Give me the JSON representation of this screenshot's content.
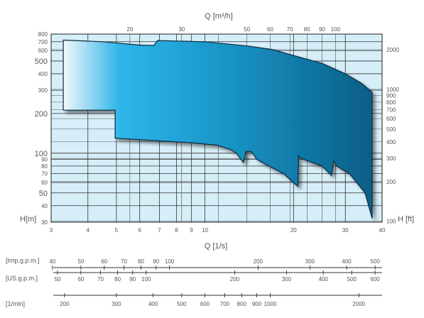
{
  "chart_data": {
    "type": "area",
    "title": "",
    "axes": {
      "q_top_label": "Q [m³/h]",
      "q_bottom_label": "Q [1/s]",
      "h_left_label": "H[m]",
      "h_right_label": "H [ft]",
      "x_ticks_m3h": [
        "20",
        "30",
        "50",
        "60",
        "70",
        "80",
        "90",
        "100"
      ],
      "x_ticks_ls": [
        "3",
        "4",
        "5",
        "6",
        "7",
        "8",
        "9",
        "10",
        "20",
        "30",
        "40"
      ],
      "y_ticks_m": [
        "800",
        "700",
        "600",
        "500",
        "400",
        "300",
        "200",
        "100",
        "90",
        "80",
        "70",
        "60",
        "50",
        "40",
        "30"
      ],
      "y_ticks_ft": [
        "2000",
        "1000",
        "900",
        "800",
        "700",
        "600",
        "500",
        "400",
        "300",
        "200",
        "100"
      ],
      "xlim_ls": [
        3,
        40
      ],
      "ylim_m": [
        30,
        800
      ],
      "log_x": true,
      "log_y": true,
      "grid": true
    },
    "envelope": {
      "name": "",
      "upper": [
        [
          3.3,
          720
        ],
        [
          4.5,
          700
        ],
        [
          6.0,
          660
        ],
        [
          6.7,
          655
        ],
        [
          6.9,
          715
        ],
        [
          10,
          700
        ],
        [
          14,
          650
        ],
        [
          17,
          610
        ],
        [
          20,
          550
        ],
        [
          25,
          480
        ],
        [
          30,
          400
        ],
        [
          34,
          340
        ],
        [
          37,
          290
        ]
      ],
      "lower": [
        [
          37,
          32
        ],
        [
          35,
          50
        ],
        [
          31,
          70
        ],
        [
          28,
          80
        ],
        [
          27.4,
          88
        ],
        [
          26.9,
          68
        ],
        [
          25,
          80
        ],
        [
          22.5,
          87
        ],
        [
          21.2,
          92
        ],
        [
          20.8,
          96
        ],
        [
          20.7,
          56
        ],
        [
          18.5,
          70
        ],
        [
          16.5,
          80
        ],
        [
          15,
          90
        ],
        [
          14.4,
          103
        ],
        [
          13.8,
          103
        ],
        [
          13.5,
          85
        ],
        [
          12.8,
          100
        ],
        [
          12.2,
          107
        ],
        [
          11,
          115
        ],
        [
          9,
          120
        ],
        [
          7,
          124
        ],
        [
          5,
          130
        ],
        [
          4.95,
          130
        ],
        [
          4.95,
          212
        ],
        [
          3.3,
          212
        ]
      ]
    },
    "scales": [
      {
        "label": "[Imp.g.p.m.]",
        "ticks": [
          "40",
          "50",
          "60",
          "70",
          "80",
          "90",
          "100",
          "200",
          "300",
          "400",
          "500"
        ]
      },
      {
        "label": "[US.g.p.m.]",
        "ticks": [
          "50",
          "60",
          "70",
          "80",
          "90",
          "100",
          "200",
          "300",
          "400",
          "500",
          "600"
        ]
      },
      {
        "label": "[1/min]",
        "ticks": [
          "200",
          "300",
          "400",
          "500",
          "600",
          "700",
          "800",
          "900",
          "1000",
          "2000"
        ]
      }
    ]
  }
}
